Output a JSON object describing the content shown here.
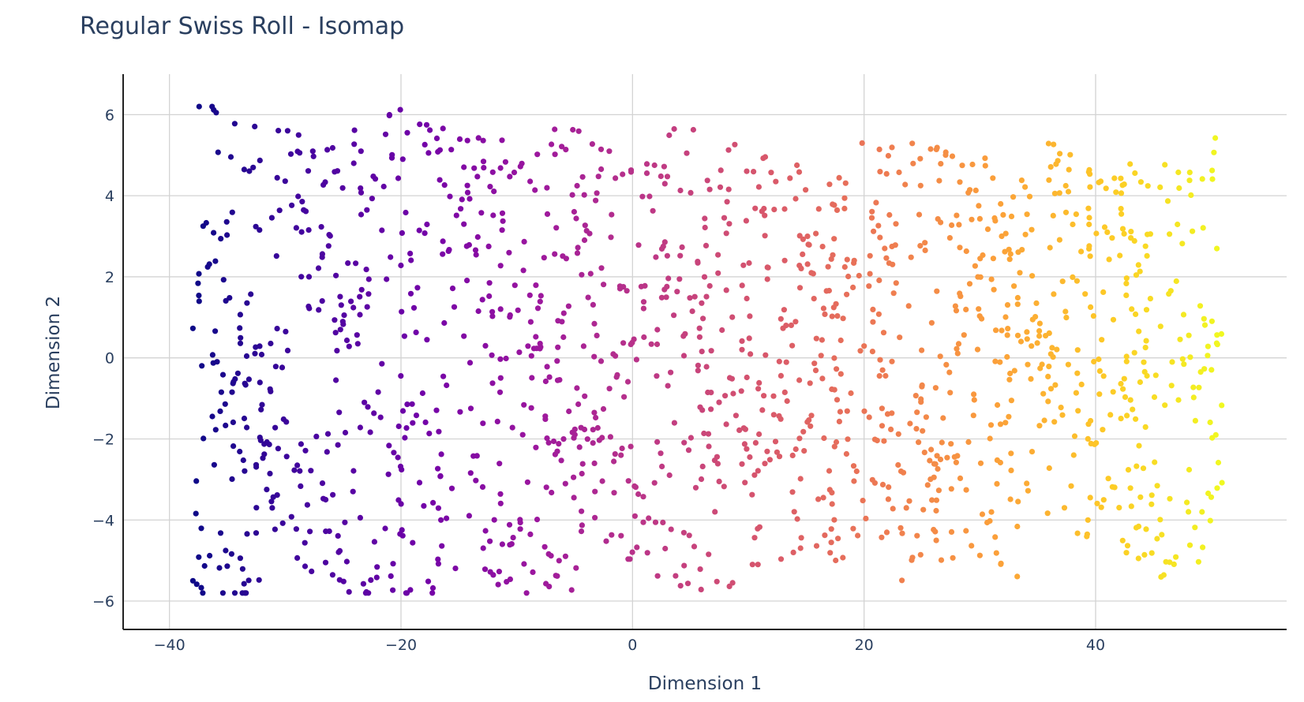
{
  "chart_data": {
    "type": "scatter",
    "title": "Regular Swiss Roll - Isomap",
    "xlabel": "Dimension 1",
    "ylabel": "Dimension 2",
    "xlim": [
      -44,
      56.5
    ],
    "ylim": [
      -6.7,
      7.0
    ],
    "x_ticks": [
      -40,
      -20,
      0,
      20,
      40
    ],
    "y_ticks": [
      -6,
      -4,
      -2,
      0,
      2,
      4,
      6
    ],
    "x_tick_labels": [
      "−40",
      "−20",
      "0",
      "20",
      "40"
    ],
    "y_tick_labels": [
      "−6",
      "−4",
      "−2",
      "0",
      "2",
      "4",
      "6"
    ],
    "grid": true,
    "legend": "none",
    "colorscale": "plasma",
    "colors": [
      "#0d0887",
      "#46039f",
      "#7201a8",
      "#9c179e",
      "#bd3786",
      "#d8576b",
      "#ed7953",
      "#fb9f3a",
      "#fdca26",
      "#f0f921"
    ],
    "color_by": "x",
    "point_count": 1500,
    "x_range": [
      -38,
      51
    ],
    "y_range": [
      -5.8,
      6.2
    ]
  }
}
